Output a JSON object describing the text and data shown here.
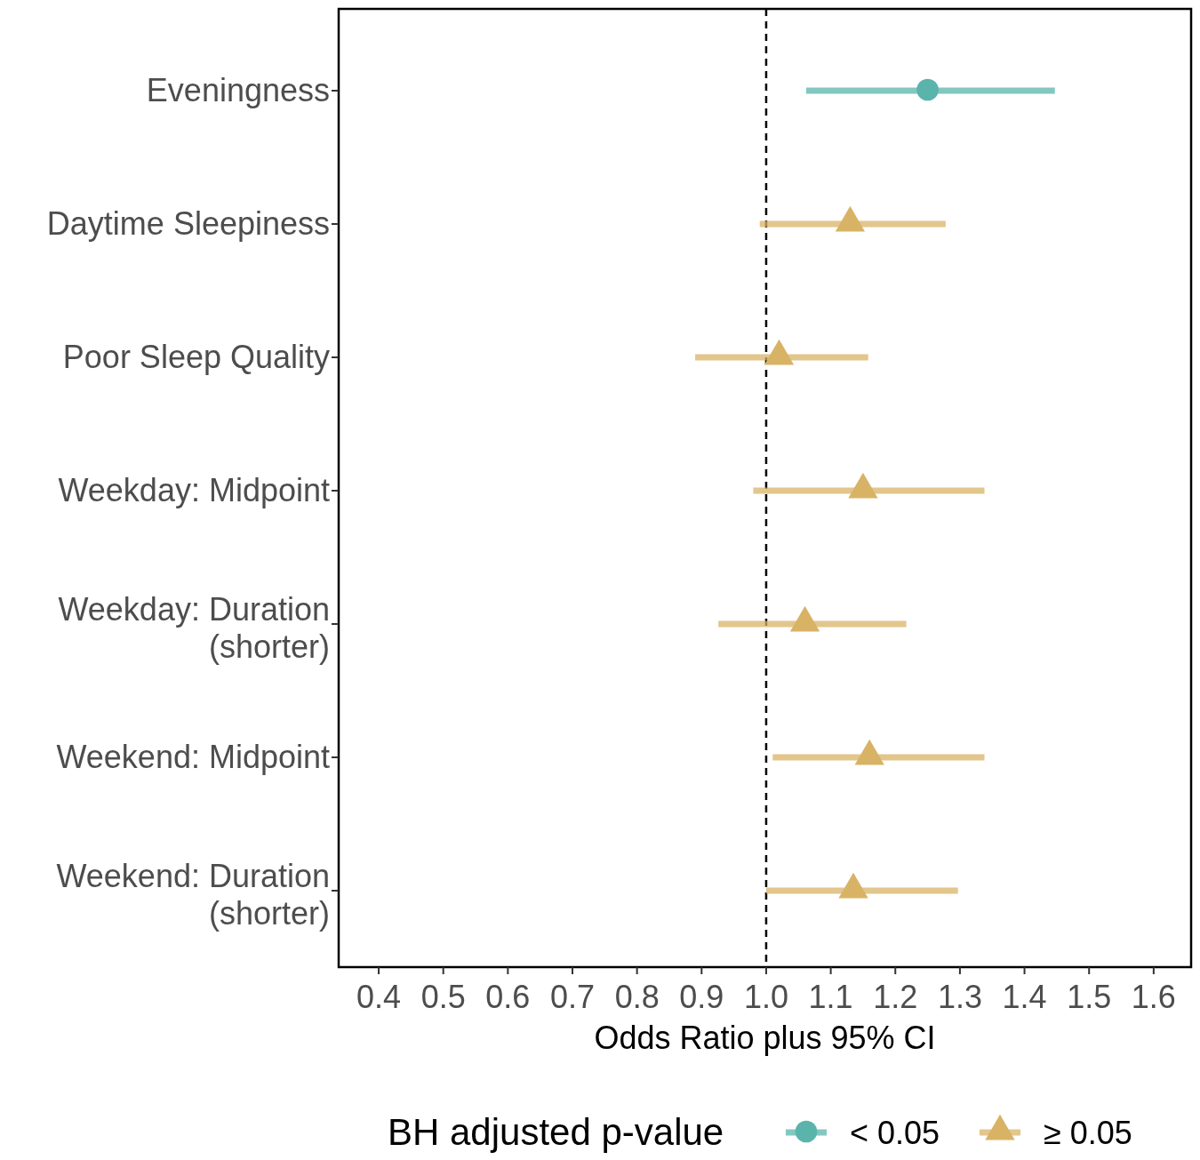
{
  "chart_data": {
    "type": "scatter",
    "orientation": "horizontal",
    "xlabel": "Odds Ratio plus 95% CI",
    "legend_title": "BH adjusted p-value",
    "legend": "bottom",
    "grid": false,
    "categories": [
      "Eveningness",
      "Daytime Sleepiness",
      "Poor Sleep Quality",
      "Weekday: Midpoint",
      "Weekday: Duration\n(shorter)",
      "Weekend: Midpoint",
      "Weekend: Duration\n(shorter)"
    ],
    "xlim": [
      0.338,
      1.658
    ],
    "xticks": [
      {
        "value": 0.4,
        "label": "0.4"
      },
      {
        "value": 0.5,
        "label": "0.5"
      },
      {
        "value": 0.6,
        "label": "0.6"
      },
      {
        "value": 0.7,
        "label": "0.7"
      },
      {
        "value": 0.8,
        "label": "0.8"
      },
      {
        "value": 0.9,
        "label": "0.9"
      },
      {
        "value": 1.0,
        "label": "1.0"
      },
      {
        "value": 1.1,
        "label": "1.1"
      },
      {
        "value": 1.2,
        "label": "1.2"
      },
      {
        "value": 1.3,
        "label": "1.3"
      },
      {
        "value": 1.4,
        "label": "1.4"
      },
      {
        "value": 1.5,
        "label": "1.5"
      },
      {
        "value": 1.6,
        "label": "1.6"
      }
    ],
    "ref_lines": [
      {
        "axis": "x",
        "value": 1.0,
        "line_style": "dashed",
        "color": "#000000"
      }
    ],
    "series": [
      {
        "name": "< 0.05",
        "color": "#5ab4ac",
        "marker": "circle",
        "values": [
          1.25,
          null,
          null,
          null,
          null,
          null,
          null
        ],
        "errors": [
          [
            1.062,
            1.447
          ],
          null,
          null,
          null,
          null,
          null,
          null
        ]
      },
      {
        "name": "≥ 0.05",
        "color": "#d8b365",
        "marker": "triangle",
        "values": [
          null,
          1.13,
          1.02,
          1.15,
          1.06,
          1.16,
          1.135
        ],
        "errors": [
          null,
          [
            0.99,
            1.278
          ],
          [
            0.89,
            1.158
          ],
          [
            0.98,
            1.338
          ],
          [
            0.926,
            1.217
          ],
          [
            1.01,
            1.338
          ],
          [
            1.0,
            1.297
          ]
        ]
      }
    ]
  }
}
